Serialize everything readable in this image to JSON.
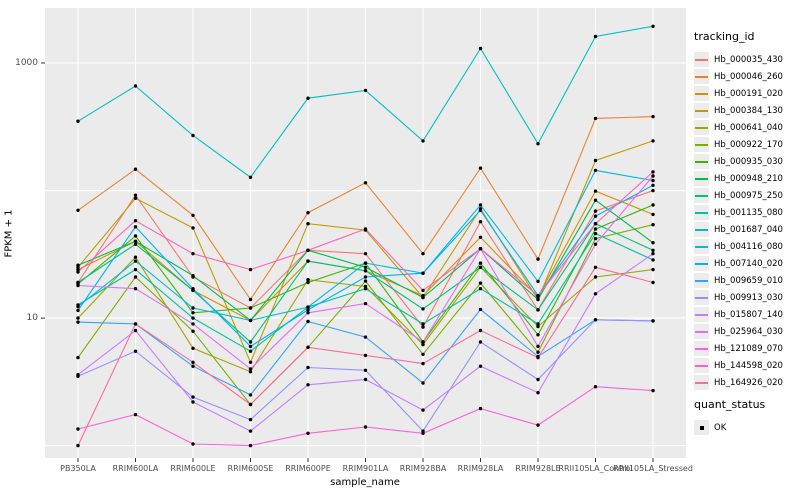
{
  "chart_data": {
    "type": "line",
    "title": "",
    "xlabel": "sample_name",
    "ylabel": "FPKM + 1",
    "y_scale": "log10",
    "ylim": [
      0.8,
      2700
    ],
    "y_gridline_values": [
      1,
      10,
      100,
      1000
    ],
    "y_ticks": [
      {
        "value": 1000,
        "label": "1000"
      },
      {
        "value": 10,
        "label": "10"
      }
    ],
    "grid": "on",
    "legend_position": "right",
    "legend_title": "tracking_id",
    "quant_legend_title": "quant_status",
    "quant_legend_entries": [
      {
        "label": "OK",
        "marker": "black-square"
      }
    ],
    "point_color": "#000000",
    "panel_bg": "#ebebeb",
    "grid_color": "#ffffff",
    "categories": [
      "PB350LA",
      "RRIM600LA",
      "RRIM600LE",
      "RRIM600SE",
      "RRIM600PE",
      "RRIM901LA",
      "RRIM928BA",
      "RRIM928LA",
      "RRIM928LE",
      "RRII105LA_Control",
      "RRII105LA_Stressed"
    ],
    "series": [
      {
        "name": "Hb_000035_430",
        "color": "#F8766D",
        "values": [
          19,
          92,
          21,
          12,
          34,
          32,
          8.5,
          57,
          11.6,
          69,
          100
        ]
      },
      {
        "name": "Hb_000046_260",
        "color": "#EA8331",
        "values": [
          70,
          147,
          64,
          14,
          67,
          115,
          32,
          150,
          29,
          368,
          380
        ]
      },
      {
        "name": "Hb_000191_020",
        "color": "#D89000",
        "values": [
          24,
          40,
          16.5,
          9.6,
          28,
          23.5,
          15,
          43,
          14.7,
          99,
          65
        ]
      },
      {
        "name": "Hb_000384_130",
        "color": "#C09B00",
        "values": [
          25,
          87,
          51,
          4.5,
          55,
          49,
          14.5,
          72,
          14,
          172,
          245
        ]
      },
      {
        "name": "Hb_000641_040",
        "color": "#A3A500",
        "values": [
          10,
          30,
          5.8,
          3.8,
          20,
          17.7,
          6.2,
          25,
          8.6,
          21,
          24
        ]
      },
      {
        "name": "Hb_000922_170",
        "color": "#7CAE00",
        "values": [
          4.9,
          21,
          7.9,
          2.1,
          5.9,
          19.5,
          5.2,
          18.8,
          5.4,
          42,
          54
        ]
      },
      {
        "name": "Hb_000935_030",
        "color": "#39B600",
        "values": [
          18.5,
          44,
          11,
          12,
          19,
          27,
          6.5,
          27,
          7.4,
          50,
          77
        ]
      },
      {
        "name": "Hb_000948_210",
        "color": "#00BB4E",
        "values": [
          26,
          40,
          21.5,
          9.6,
          34,
          25,
          14.5,
          35,
          14,
          84,
          39
        ]
      },
      {
        "name": "Hb_000975_250",
        "color": "#00BF7D",
        "values": [
          19,
          38,
          16.5,
          6.5,
          28,
          23.5,
          11.8,
          25,
          11.6,
          55,
          34
        ]
      },
      {
        "name": "Hb_001135_080",
        "color": "#00C1A3",
        "values": [
          12.7,
          24,
          10,
          5.5,
          12.2,
          17,
          9,
          17,
          9,
          46,
          28.6
        ]
      },
      {
        "name": "Hb_001687_040",
        "color": "#00BFC4",
        "values": [
          350,
          660,
          270,
          127,
          530,
          610,
          245,
          1300,
          233,
          1615,
          1940
        ]
      },
      {
        "name": "Hb_004116_080",
        "color": "#00BAE0",
        "values": [
          12.3,
          28,
          12,
          9.6,
          12.2,
          27,
          22.5,
          77,
          19.4,
          144,
          120
        ]
      },
      {
        "name": "Hb_007140_020",
        "color": "#00B0F6",
        "values": [
          11.5,
          52,
          17,
          6,
          11.6,
          21,
          22.5,
          70,
          15,
          63,
          110
        ]
      },
      {
        "name": "Hb_009659_010",
        "color": "#35A2FF",
        "values": [
          9.3,
          9,
          4.2,
          2.5,
          9.4,
          7.1,
          3.1,
          11.7,
          5,
          9.7,
          9.5
        ]
      },
      {
        "name": "Hb_009913_030",
        "color": "#9590FF",
        "values": [
          3.5,
          5.5,
          2.4,
          1.6,
          4.1,
          3.9,
          1.3,
          6.5,
          3.3,
          9.7,
          9.5
        ]
      },
      {
        "name": "Hb_015807_140",
        "color": "#C77CFF",
        "values": [
          3.6,
          8,
          2.2,
          1.3,
          3,
          3.3,
          1.9,
          4.2,
          2.6,
          15.5,
          32
        ]
      },
      {
        "name": "Hb_025964_030",
        "color": "#E76BF3",
        "values": [
          18,
          17,
          9,
          4,
          11,
          13,
          6.5,
          35,
          6,
          38,
          130
        ]
      },
      {
        "name": "Hb_121089_070",
        "color": "#FA62DB",
        "values": [
          1.35,
          1.75,
          1.03,
          1.0,
          1.25,
          1.4,
          1.25,
          1.95,
          1.45,
          2.9,
          2.7
        ]
      },
      {
        "name": "Hb_144598_020",
        "color": "#FF62BC",
        "values": [
          23,
          58,
          32,
          24,
          34,
          50,
          16.5,
          35,
          15,
          55,
          140
        ]
      },
      {
        "name": "Hb_164926_020",
        "color": "#FF6A98",
        "values": [
          1.0,
          9,
          4.5,
          2.1,
          5.9,
          5.1,
          4.4,
          8,
          4.9,
          25,
          19
        ]
      }
    ]
  }
}
